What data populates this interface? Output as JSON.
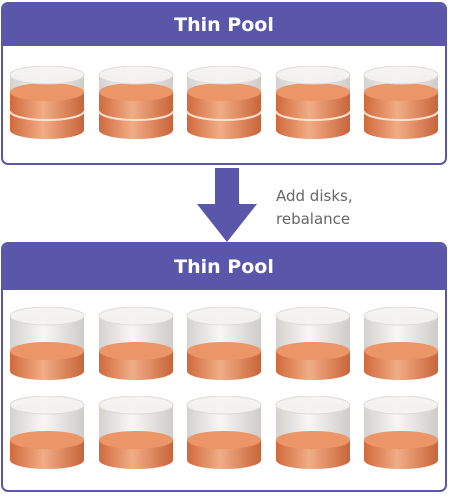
{
  "diagram": {
    "pool_before": {
      "title": "Thin Pool",
      "disks": [
        {
          "fill_level": "full",
          "segments": 2
        },
        {
          "fill_level": "full",
          "segments": 2
        },
        {
          "fill_level": "full",
          "segments": 2
        },
        {
          "fill_level": "full",
          "segments": 2
        },
        {
          "fill_level": "full",
          "segments": 2
        }
      ]
    },
    "transition": {
      "caption_line1": "Add disks,",
      "caption_line2": "rebalance",
      "arrow_icon": "down-arrow-icon"
    },
    "pool_after": {
      "title": "Thin Pool",
      "rows": [
        [
          {
            "fill_level": "low"
          },
          {
            "fill_level": "low"
          },
          {
            "fill_level": "low"
          },
          {
            "fill_level": "low"
          },
          {
            "fill_level": "low"
          }
        ],
        [
          {
            "fill_level": "low"
          },
          {
            "fill_level": "low"
          },
          {
            "fill_level": "low"
          },
          {
            "fill_level": "low"
          },
          {
            "fill_level": "low"
          }
        ]
      ]
    },
    "colors": {
      "pool_border": "#5a57ab",
      "header_bg": "#5a57ab",
      "header_text": "#ffffff",
      "disk_fill": "#e0875a",
      "disk_shell": "#e8e6e3",
      "arrow": "#5a57ab",
      "caption": "#666666"
    }
  }
}
